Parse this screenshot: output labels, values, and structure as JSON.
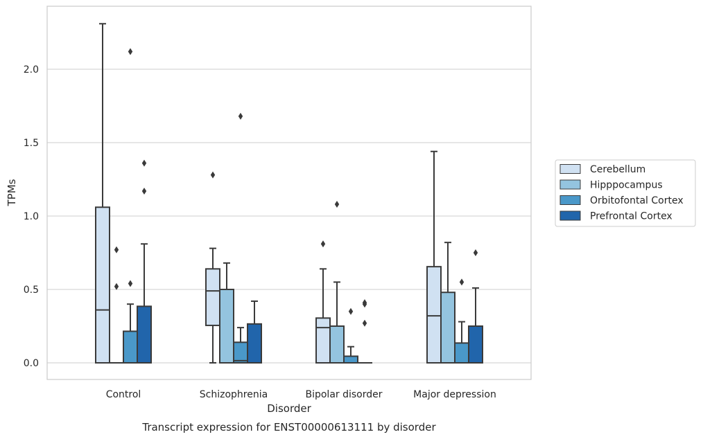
{
  "chart_data": {
    "type": "boxplot",
    "title": "",
    "caption": "Transcript expression for ENST00000613111 by disorder",
    "xlabel": "Disorder",
    "ylabel": "TPMs",
    "ylim": [
      -0.11,
      2.44
    ],
    "yticks": [
      "0.0",
      "0.5",
      "1.0",
      "1.5",
      "2.0"
    ],
    "grid": "horizontal",
    "legend_position": "right",
    "categories": [
      "Control",
      "Schizophrenia",
      "Bipolar disorder",
      "Major depression"
    ],
    "series": [
      {
        "name": "Cerebellum",
        "color": "#d0e1f2",
        "boxes": [
          {
            "q1": 0.0,
            "median": 0.36,
            "q3": 1.06,
            "whisker_low": 0.0,
            "whisker_high": 2.31,
            "outliers": []
          },
          {
            "q1": 0.255,
            "median": 0.49,
            "q3": 0.64,
            "whisker_low": 0.0,
            "whisker_high": 0.78,
            "outliers": [
              1.28
            ]
          },
          {
            "q1": 0.0,
            "median": 0.24,
            "q3": 0.305,
            "whisker_low": 0.0,
            "whisker_high": 0.64,
            "outliers": [
              0.81
            ]
          },
          {
            "q1": 0.0,
            "median": 0.32,
            "q3": 0.655,
            "whisker_low": 0.0,
            "whisker_high": 1.44,
            "outliers": []
          }
        ]
      },
      {
        "name": "Hipppocampus",
        "color": "#94c4df",
        "boxes": [
          {
            "q1": 0.0,
            "median": 0.0,
            "q3": 0.0,
            "whisker_low": 0.0,
            "whisker_high": 0.0,
            "outliers": [
              0.52,
              0.77
            ]
          },
          {
            "q1": 0.0,
            "median": 0.0,
            "q3": 0.5,
            "whisker_low": 0.0,
            "whisker_high": 0.68,
            "outliers": []
          },
          {
            "q1": 0.0,
            "median": 0.0,
            "q3": 0.25,
            "whisker_low": 0.0,
            "whisker_high": 0.55,
            "outliers": [
              1.08
            ]
          },
          {
            "q1": 0.0,
            "median": 0.0,
            "q3": 0.48,
            "whisker_low": 0.0,
            "whisker_high": 0.82,
            "outliers": []
          }
        ]
      },
      {
        "name": "Orbitofontal Cortex",
        "color": "#4a98c9",
        "boxes": [
          {
            "q1": 0.0,
            "median": 0.0,
            "q3": 0.215,
            "whisker_low": 0.0,
            "whisker_high": 0.4,
            "outliers": [
              0.54,
              2.12
            ]
          },
          {
            "q1": 0.0,
            "median": 0.015,
            "q3": 0.14,
            "whisker_low": 0.0,
            "whisker_high": 0.24,
            "outliers": [
              1.68
            ]
          },
          {
            "q1": 0.0,
            "median": 0.0,
            "q3": 0.045,
            "whisker_low": 0.0,
            "whisker_high": 0.11,
            "outliers": [
              0.35
            ]
          },
          {
            "q1": 0.0,
            "median": 0.0,
            "q3": 0.135,
            "whisker_low": 0.0,
            "whisker_high": 0.28,
            "outliers": [
              0.55
            ]
          }
        ]
      },
      {
        "name": "Prefrontal Cortex",
        "color": "#2165ab",
        "boxes": [
          {
            "q1": 0.0,
            "median": 0.0,
            "q3": 0.385,
            "whisker_low": 0.0,
            "whisker_high": 0.81,
            "outliers": [
              1.17,
              1.36
            ]
          },
          {
            "q1": 0.0,
            "median": 0.0,
            "q3": 0.265,
            "whisker_low": 0.0,
            "whisker_high": 0.42,
            "outliers": []
          },
          {
            "q1": 0.0,
            "median": 0.0,
            "q3": 0.0,
            "whisker_low": 0.0,
            "whisker_high": 0.0,
            "outliers": [
              0.27,
              0.4,
              0.41
            ]
          },
          {
            "q1": 0.0,
            "median": 0.0,
            "q3": 0.25,
            "whisker_low": 0.0,
            "whisker_high": 0.51,
            "outliers": [
              0.75
            ]
          }
        ]
      }
    ]
  }
}
